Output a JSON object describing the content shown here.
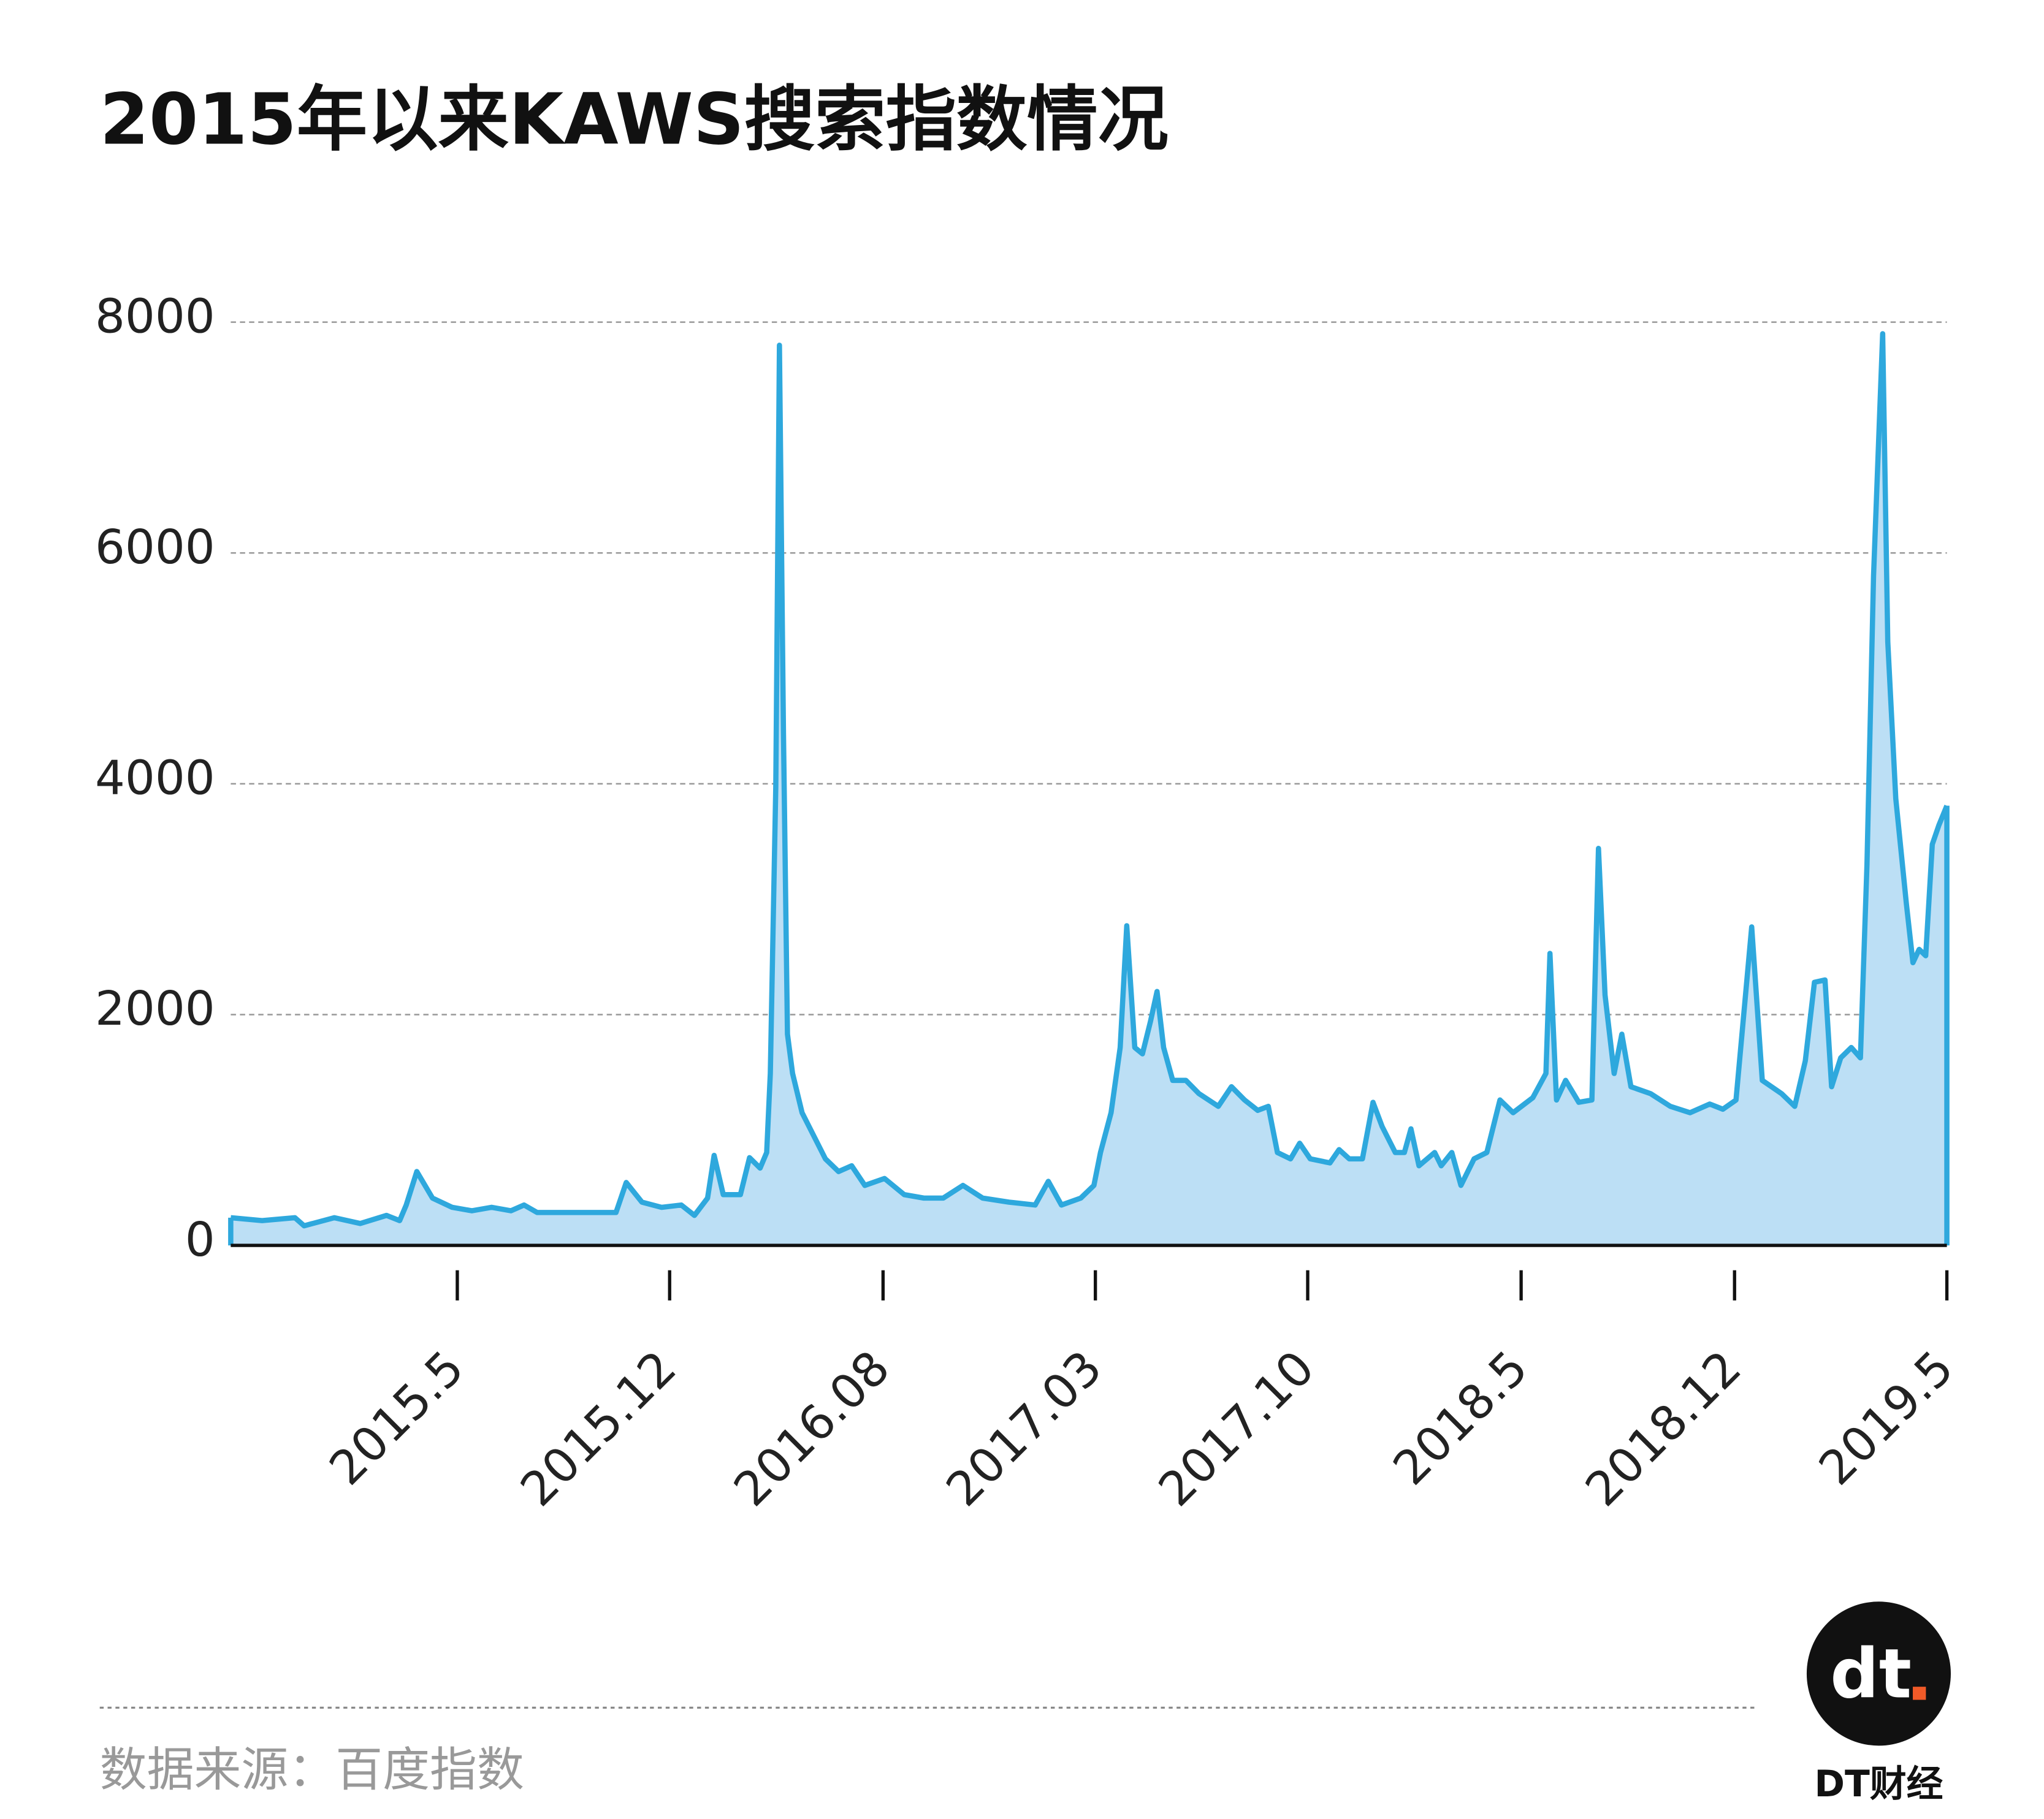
{
  "chart_data": {
    "type": "area",
    "title": "2015年以来KAWS搜索指数情况",
    "source": "数据来源：百度指数",
    "logo": "dt",
    "brand": "DT财经",
    "x": [
      2014.712,
      2014.798,
      2014.888,
      2014.913,
      2014.996,
      2015.067,
      2015.139,
      2015.175,
      2015.193,
      2015.222,
      2015.265,
      2015.319,
      2015.373,
      2015.427,
      2015.48,
      2015.516,
      2015.552,
      2015.768,
      2015.796,
      2015.839,
      2015.893,
      2015.947,
      2015.983,
      2016.019,
      2016.037,
      2016.062,
      2016.109,
      2016.134,
      2016.163,
      2016.181,
      2016.191,
      2016.206,
      2016.216,
      2016.227,
      2016.238,
      2016.252,
      2016.278,
      2016.306,
      2016.342,
      2016.378,
      2016.414,
      2016.45,
      2016.504,
      2016.558,
      2016.612,
      2016.665,
      2016.719,
      2016.773,
      2016.845,
      2016.917,
      2016.953,
      2016.989,
      2017.042,
      2017.078,
      2017.096,
      2017.125,
      2017.15,
      2017.168,
      2017.19,
      2017.211,
      2017.233,
      2017.251,
      2017.269,
      2017.294,
      2017.33,
      2017.366,
      2017.419,
      2017.455,
      2017.491,
      2017.527,
      2017.556,
      2017.581,
      2017.617,
      2017.642,
      2017.671,
      2017.725,
      2017.75,
      2017.778,
      2017.814,
      2017.843,
      2017.868,
      2017.904,
      2017.929,
      2017.947,
      2017.969,
      2018.012,
      2018.03,
      2018.059,
      2018.084,
      2018.12,
      2018.155,
      2018.191,
      2018.227,
      2018.281,
      2018.317,
      2018.328,
      2018.346,
      2018.371,
      2018.407,
      2018.443,
      2018.461,
      2018.479,
      2018.504,
      2018.525,
      2018.55,
      2018.604,
      2018.658,
      2018.712,
      2018.766,
      2018.802,
      2018.838,
      2018.881,
      2018.91,
      2018.963,
      2018.999,
      2019.028,
      2019.053,
      2019.082,
      2019.1,
      2019.125,
      2019.154,
      2019.179,
      2019.197,
      2019.215,
      2019.24,
      2019.254,
      2019.276,
      2019.305,
      2019.323,
      2019.34,
      2019.358,
      2019.376,
      2019.394,
      2019.416
    ],
    "series": [
      {
        "color": "#2ea8dd",
        "fill": "#bcdff5",
        "values": [
          240,
          215,
          240,
          170,
          240,
          190,
          260,
          215,
          350,
          640,
          410,
          330,
          300,
          330,
          300,
          350,
          285,
          285,
          545,
          375,
          330,
          350,
          260,
          410,
          780,
          440,
          440,
          760,
          670,
          805,
          1490,
          3980,
          7800,
          4440,
          1830,
          1490,
          1150,
          975,
          750,
          640,
          690,
          520,
          580,
          440,
          410,
          410,
          520,
          410,
          375,
          350,
          555,
          350,
          410,
          520,
          805,
          1150,
          1715,
          2770,
          1715,
          1660,
          1940,
          2200,
          1715,
          1430,
          1430,
          1315,
          1205,
          1375,
          1260,
          1170,
          1205,
          805,
          750,
          885,
          750,
          715,
          830,
          750,
          750,
          1240,
          1030,
          805,
          805,
          1010,
          690,
          805,
          690,
          805,
          520,
          750,
          805,
          1260,
          1150,
          1280,
          1490,
          2530,
          1260,
          1430,
          1240,
          1260,
          3440,
          2170,
          1490,
          1830,
          1375,
          1315,
          1205,
          1150,
          1225,
          1180,
          1260,
          2760,
          1430,
          1315,
          1205,
          1600,
          2280,
          2300,
          1375,
          1625,
          1715,
          1625,
          3300,
          5800,
          7900,
          5230,
          3870,
          2960,
          2450,
          2565,
          2510,
          3475,
          3640,
          3810
        ]
      }
    ],
    "xlim": [
      2014.712,
      2019.416
    ],
    "xticks": [
      {
        "value": 2015.333,
        "label": "2015.5"
      },
      {
        "value": 2015.915,
        "label": "2015.12"
      },
      {
        "value": 2016.5,
        "label": "2016.08"
      },
      {
        "value": 2017.082,
        "label": "2017.03"
      },
      {
        "value": 2017.664,
        "label": "2017.10"
      },
      {
        "value": 2018.249,
        "label": "2018.5"
      },
      {
        "value": 2018.834,
        "label": "2018.12"
      },
      {
        "value": 2019.416,
        "label": "2019.5"
      }
    ],
    "ylim": [
      0,
      8000
    ],
    "yticks": [
      0,
      2000,
      4000,
      6000,
      8000
    ],
    "grid": true
  }
}
